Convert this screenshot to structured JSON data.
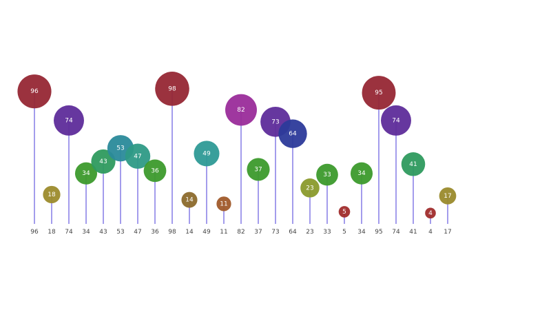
{
  "chart_data": {
    "type": "lollipop",
    "values": [
      96,
      18,
      74,
      34,
      43,
      53,
      47,
      36,
      98,
      14,
      49,
      11,
      82,
      37,
      73,
      64,
      23,
      33,
      5,
      34,
      95,
      74,
      41,
      4,
      17
    ],
    "categories": [
      "96",
      "18",
      "74",
      "34",
      "43",
      "53",
      "47",
      "36",
      "98",
      "14",
      "49",
      "11",
      "82",
      "37",
      "73",
      "64",
      "23",
      "33",
      "5",
      "34",
      "95",
      "74",
      "41",
      "4",
      "17"
    ],
    "colors": [
      "#962734",
      "#9c8b2c",
      "#5e2c9a",
      "#3c9a2c",
      "#2e9a5e",
      "#2a8a9a",
      "#2e9a86",
      "#3c9a2c",
      "#962734",
      "#8c6a2c",
      "#2e9a96",
      "#a05a2a",
      "#9a2c9a",
      "#3c9a2c",
      "#5e2c9a",
      "#2c3a9a",
      "#8a9a2c",
      "#3c9a2c",
      "#a02c2c",
      "#3c9a2c",
      "#962734",
      "#5e2c9a",
      "#2e9a5e",
      "#a02c2c",
      "#9a8a2c"
    ],
    "ylim": [
      0,
      100
    ],
    "grid": false,
    "title": "",
    "xlabel": "",
    "ylabel": ""
  }
}
